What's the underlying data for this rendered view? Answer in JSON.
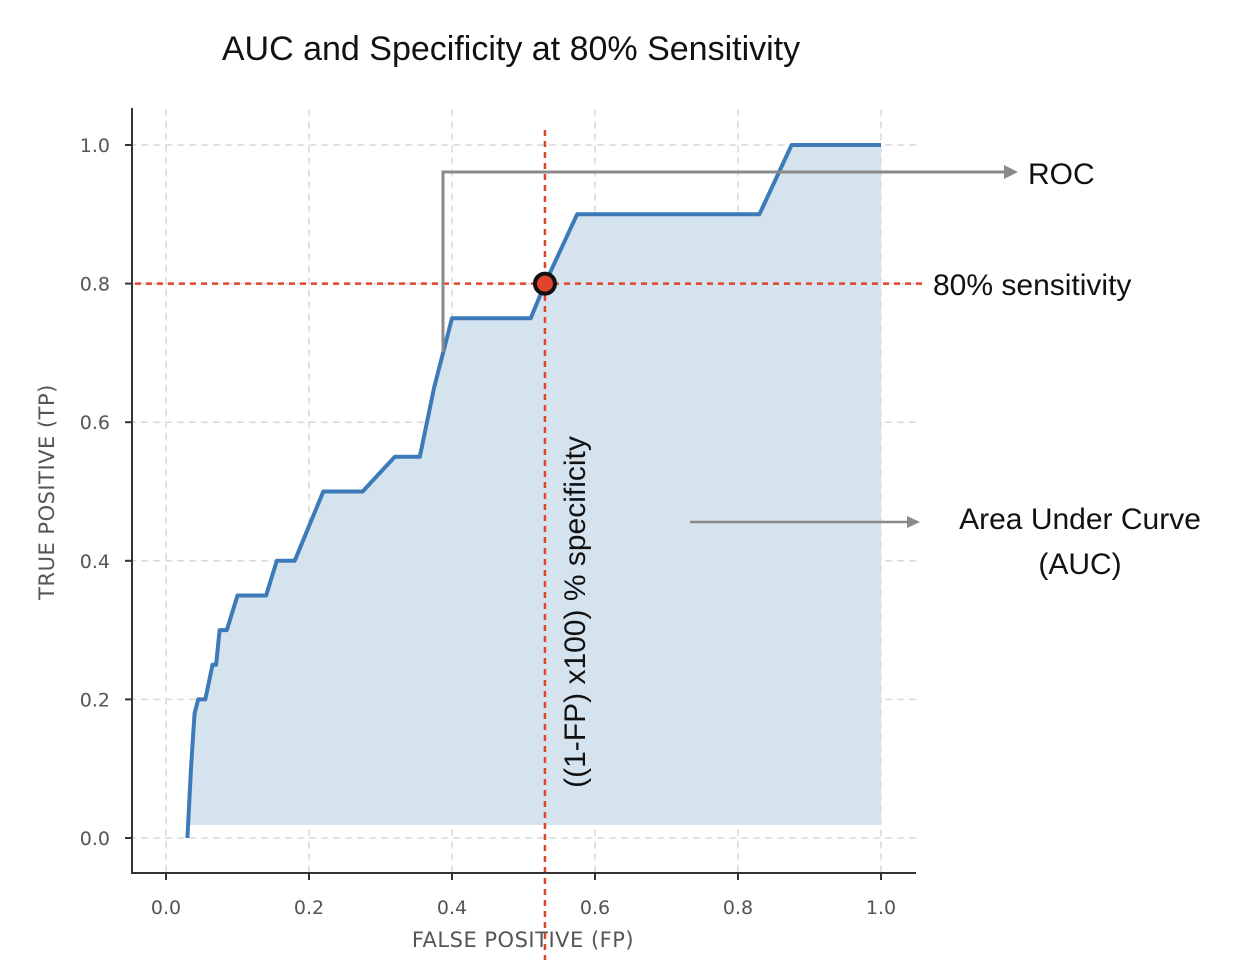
{
  "chart_data": {
    "type": "area",
    "title": "AUC and Specificity at 80% Sensitivity",
    "xlabel": "FALSE POSITIVE (FP)",
    "ylabel": "TRUE POSITIVE (TP)",
    "xlim": [
      -0.05,
      1.05
    ],
    "ylim": [
      -0.05,
      1.05
    ],
    "xticks": [
      0.0,
      0.2,
      0.4,
      0.6,
      0.8,
      1.0
    ],
    "yticks": [
      0.0,
      0.2,
      0.4,
      0.6,
      0.8,
      1.0
    ],
    "xtick_labels": [
      "0.0",
      "0.2",
      "0.4",
      "0.6",
      "0.8",
      "1.0"
    ],
    "ytick_labels": [
      "0.0",
      "0.2",
      "0.4",
      "0.6",
      "0.8",
      "1.0"
    ],
    "grid": true,
    "series": [
      {
        "color": "#3d7ab8",
        "fill": "#d5e3ef",
        "x": [
          0.03,
          0.035,
          0.038,
          0.04,
          0.045,
          0.055,
          0.065,
          0.07,
          0.075,
          0.085,
          0.1,
          0.14,
          0.155,
          0.18,
          0.22,
          0.275,
          0.32,
          0.355,
          0.375,
          0.4,
          0.51,
          0.53,
          0.575,
          0.83,
          0.875,
          1.0
        ],
        "y": [
          0.0,
          0.1,
          0.15,
          0.18,
          0.2,
          0.2,
          0.25,
          0.25,
          0.3,
          0.3,
          0.35,
          0.35,
          0.4,
          0.4,
          0.5,
          0.5,
          0.55,
          0.55,
          0.65,
          0.75,
          0.75,
          0.8,
          0.9,
          0.9,
          1.0,
          1.0
        ]
      }
    ],
    "operating_point": {
      "x": 0.53,
      "y": 0.8,
      "color": "#e0452c"
    },
    "reference_line_color": "#e0452c",
    "annotations": {
      "roc": "ROC",
      "sensitivity": "80% sensitivity",
      "specificity": "((1-FP) x100) % specificity",
      "auc_line1": "Area Under Curve",
      "auc_line2": "(AUC)"
    }
  }
}
